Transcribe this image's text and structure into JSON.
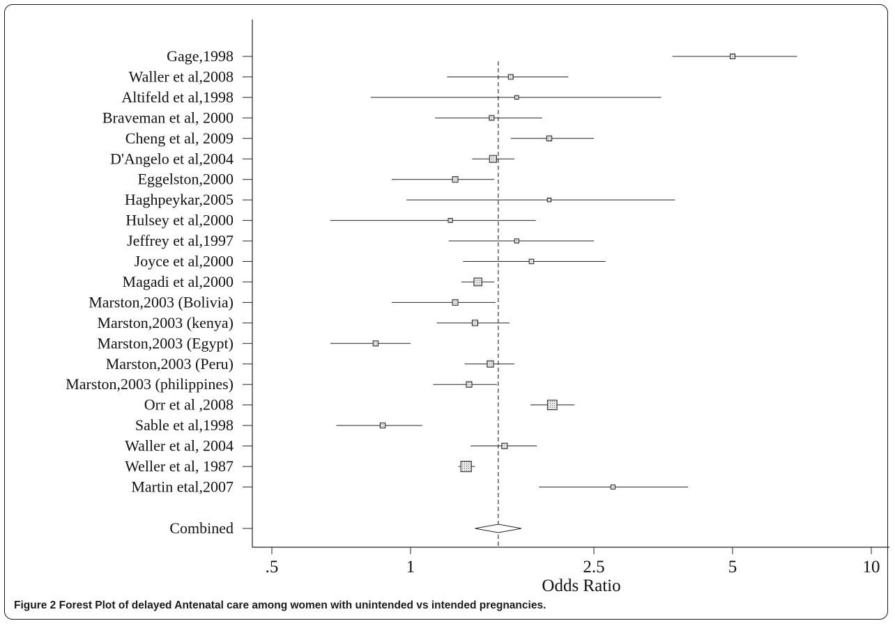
{
  "chart_data": {
    "type": "forest",
    "xlabel": "Odds Ratio",
    "xscale": "log",
    "xlim": [
      0.5,
      10
    ],
    "xticks": [
      0.5,
      1,
      2.5,
      5,
      10
    ],
    "xtick_labels": [
      ".5",
      "1",
      "2.5",
      "5",
      "10"
    ],
    "reference_line": 1.55,
    "studies": [
      {
        "label": "Gage,1998",
        "or": 5.0,
        "lo": 3.7,
        "hi": 6.9,
        "weight": 0.25
      },
      {
        "label": "Waller et al,2008",
        "or": 1.65,
        "lo": 1.2,
        "hi": 2.2,
        "weight": 0.25
      },
      {
        "label": "Altifeld et al,1998",
        "or": 1.7,
        "lo": 0.82,
        "hi": 3.5,
        "weight": 0.1
      },
      {
        "label": "Braveman et al, 2000",
        "or": 1.5,
        "lo": 1.13,
        "hi": 1.93,
        "weight": 0.25
      },
      {
        "label": "Cheng et al, 2009",
        "or": 2.0,
        "lo": 1.65,
        "hi": 2.5,
        "weight": 0.3
      },
      {
        "label": "D'Angelo et al,2004",
        "or": 1.51,
        "lo": 1.36,
        "hi": 1.68,
        "weight": 0.8
      },
      {
        "label": "Eggelston,2000",
        "or": 1.25,
        "lo": 0.91,
        "hi": 1.52,
        "weight": 0.4
      },
      {
        "label": "Haghpeykar,2005",
        "or": 2.0,
        "lo": 0.98,
        "hi": 3.75,
        "weight": 0.1
      },
      {
        "label": "Hulsey et al,2000",
        "or": 1.22,
        "lo": 0.67,
        "hi": 1.87,
        "weight": 0.15
      },
      {
        "label": "Jeffrey et al,1997",
        "or": 1.7,
        "lo": 1.21,
        "hi": 2.5,
        "weight": 0.15
      },
      {
        "label": "Joyce et al,2000",
        "or": 1.83,
        "lo": 1.3,
        "hi": 2.65,
        "weight": 0.2
      },
      {
        "label": "Magadi et al,2000",
        "or": 1.4,
        "lo": 1.29,
        "hi": 1.52,
        "weight": 1.1
      },
      {
        "label": "Marston,2003 (Bolivia)",
        "or": 1.25,
        "lo": 0.91,
        "hi": 1.53,
        "weight": 0.4
      },
      {
        "label": "Marston,2003 (kenya)",
        "or": 1.38,
        "lo": 1.14,
        "hi": 1.64,
        "weight": 0.4
      },
      {
        "label": "Marston,2003 (Egypt)",
        "or": 0.84,
        "lo": 0.67,
        "hi": 1.0,
        "weight": 0.3
      },
      {
        "label": "Marston,2003 (Peru)",
        "or": 1.49,
        "lo": 1.31,
        "hi": 1.68,
        "weight": 0.6
      },
      {
        "label": "Marston,2003 (philippines)",
        "or": 1.34,
        "lo": 1.12,
        "hi": 1.54,
        "weight": 0.4
      },
      {
        "label": "Orr et al ,2008",
        "or": 2.03,
        "lo": 1.82,
        "hi": 2.27,
        "weight": 1.8
      },
      {
        "label": "Sable et al,1998",
        "or": 0.87,
        "lo": 0.69,
        "hi": 1.06,
        "weight": 0.3
      },
      {
        "label": "Waller et al, 2004",
        "or": 1.6,
        "lo": 1.35,
        "hi": 1.88,
        "weight": 0.4
      },
      {
        "label": "Weller et al, 1987",
        "or": 1.32,
        "lo": 1.27,
        "hi": 1.38,
        "weight": 2.3
      },
      {
        "label": "Martin etal,2007",
        "or": 2.75,
        "lo": 1.9,
        "hi": 4.0,
        "weight": 0.15
      }
    ],
    "combined": {
      "label": "Combined",
      "or": 1.55,
      "lo": 1.38,
      "hi": 1.74
    }
  },
  "caption": {
    "lead": "Figure 2",
    "text": "Forest Plot of delayed Antenatal care among women with unintended vs intended pregnancies."
  }
}
